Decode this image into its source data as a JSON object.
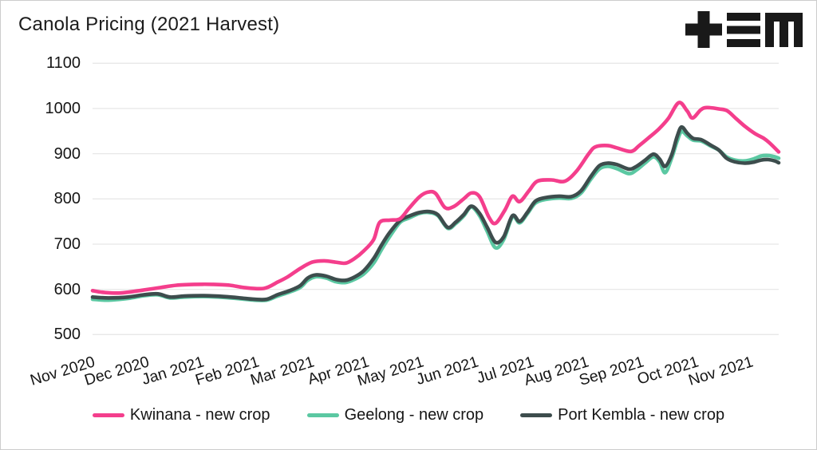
{
  "title": "Canola Pricing (2021 Harvest)",
  "logo": {
    "name": "tem-logo",
    "color": "#191919"
  },
  "chart_data": {
    "type": "line",
    "title": "Canola Pricing (2021 Harvest)",
    "xlabel": "",
    "ylabel": "",
    "x_unit": "months since Nov 2020 (0 = Nov 2020, 12 = Nov 2021)",
    "xlim": [
      0,
      12.5
    ],
    "ylim": [
      500,
      1100
    ],
    "grid": "horizontal-only",
    "legend_position": "bottom-center",
    "yticks": [
      500,
      600,
      700,
      800,
      900,
      1000,
      1100
    ],
    "xtick_labels": [
      "Nov 2020",
      "Dec 2020",
      "Jan 2021",
      "Feb 2021",
      "Mar 2021",
      "Apr 2021",
      "May 2021",
      "Jun 2021",
      "Jul 2021",
      "Aug 2021",
      "Sep 2021",
      "Oct 2021",
      "Nov 2021"
    ],
    "colors": {
      "grid": "#e8e8e8",
      "text": "#161616"
    },
    "series": [
      {
        "name": "Kwinana - new crop",
        "color": "#f43e8c",
        "points": [
          [
            0,
            597
          ],
          [
            0.22,
            593
          ],
          [
            0.51,
            592
          ],
          [
            0.9,
            598
          ],
          [
            1.24,
            604
          ],
          [
            1.53,
            609
          ],
          [
            1.89,
            611
          ],
          [
            2.18,
            611
          ],
          [
            2.5,
            609
          ],
          [
            2.76,
            604
          ],
          [
            3.12,
            602
          ],
          [
            3.37,
            616
          ],
          [
            3.56,
            628
          ],
          [
            3.78,
            646
          ],
          [
            4.0,
            660
          ],
          [
            4.22,
            663
          ],
          [
            4.43,
            660
          ],
          [
            4.61,
            658
          ],
          [
            4.77,
            668
          ],
          [
            4.94,
            685
          ],
          [
            5.12,
            710
          ],
          [
            5.23,
            748
          ],
          [
            5.42,
            753
          ],
          [
            5.6,
            756
          ],
          [
            5.77,
            780
          ],
          [
            5.96,
            805
          ],
          [
            6.11,
            815
          ],
          [
            6.25,
            812
          ],
          [
            6.42,
            781
          ],
          [
            6.58,
            783
          ],
          [
            6.76,
            800
          ],
          [
            6.9,
            813
          ],
          [
            7.05,
            805
          ],
          [
            7.22,
            760
          ],
          [
            7.34,
            746
          ],
          [
            7.51,
            775
          ],
          [
            7.65,
            806
          ],
          [
            7.78,
            794
          ],
          [
            7.95,
            818
          ],
          [
            8.1,
            839
          ],
          [
            8.36,
            842
          ],
          [
            8.6,
            839
          ],
          [
            8.82,
            862
          ],
          [
            9.04,
            900
          ],
          [
            9.16,
            915
          ],
          [
            9.38,
            918
          ],
          [
            9.55,
            913
          ],
          [
            9.81,
            905
          ],
          [
            9.96,
            918
          ],
          [
            10.13,
            935
          ],
          [
            10.32,
            955
          ],
          [
            10.49,
            978
          ],
          [
            10.68,
            1013
          ],
          [
            10.83,
            995
          ],
          [
            10.93,
            979
          ],
          [
            11.08,
            997
          ],
          [
            11.19,
            1002
          ],
          [
            11.41,
            999
          ],
          [
            11.56,
            995
          ],
          [
            11.73,
            977
          ],
          [
            11.89,
            960
          ],
          [
            12.06,
            945
          ],
          [
            12.24,
            933
          ],
          [
            12.35,
            922
          ],
          [
            12.5,
            904
          ]
        ]
      },
      {
        "name": "Geelong - new crop",
        "color": "#5bc8a2",
        "points": [
          [
            0,
            578
          ],
          [
            0.29,
            576
          ],
          [
            0.65,
            580
          ],
          [
            0.94,
            586
          ],
          [
            1.19,
            588
          ],
          [
            1.41,
            581
          ],
          [
            1.67,
            583
          ],
          [
            2.03,
            584
          ],
          [
            2.4,
            582
          ],
          [
            2.69,
            579
          ],
          [
            2.95,
            576
          ],
          [
            3.17,
            576
          ],
          [
            3.37,
            585
          ],
          [
            3.59,
            594
          ],
          [
            3.78,
            604
          ],
          [
            3.92,
            620
          ],
          [
            4.07,
            628
          ],
          [
            4.26,
            625
          ],
          [
            4.43,
            617
          ],
          [
            4.61,
            615
          ],
          [
            4.77,
            622
          ],
          [
            4.94,
            634
          ],
          [
            5.12,
            658
          ],
          [
            5.26,
            687
          ],
          [
            5.41,
            716
          ],
          [
            5.6,
            748
          ],
          [
            5.77,
            758
          ],
          [
            5.96,
            768
          ],
          [
            6.13,
            770
          ],
          [
            6.29,
            763
          ],
          [
            6.47,
            735
          ],
          [
            6.61,
            745
          ],
          [
            6.76,
            762
          ],
          [
            6.9,
            782
          ],
          [
            7.05,
            763
          ],
          [
            7.19,
            728
          ],
          [
            7.34,
            692
          ],
          [
            7.49,
            710
          ],
          [
            7.65,
            760
          ],
          [
            7.78,
            747
          ],
          [
            7.92,
            767
          ],
          [
            8.07,
            791
          ],
          [
            8.26,
            799
          ],
          [
            8.5,
            802
          ],
          [
            8.72,
            801
          ],
          [
            8.9,
            813
          ],
          [
            9.08,
            844
          ],
          [
            9.23,
            866
          ],
          [
            9.38,
            872
          ],
          [
            9.55,
            867
          ],
          [
            9.77,
            856
          ],
          [
            9.91,
            864
          ],
          [
            10.07,
            880
          ],
          [
            10.22,
            893
          ],
          [
            10.33,
            882
          ],
          [
            10.43,
            858
          ],
          [
            10.55,
            890
          ],
          [
            10.65,
            928
          ],
          [
            10.73,
            949
          ],
          [
            10.83,
            940
          ],
          [
            10.94,
            930
          ],
          [
            11.09,
            928
          ],
          [
            11.26,
            917
          ],
          [
            11.41,
            908
          ],
          [
            11.55,
            893
          ],
          [
            11.7,
            886
          ],
          [
            11.88,
            884
          ],
          [
            12.03,
            888
          ],
          [
            12.18,
            895
          ],
          [
            12.31,
            896
          ],
          [
            12.43,
            893
          ],
          [
            12.5,
            890
          ]
        ]
      },
      {
        "name": "Port Kembla - new crop",
        "color": "#3d4d4d",
        "points": [
          [
            0,
            583
          ],
          [
            0.29,
            581
          ],
          [
            0.65,
            583
          ],
          [
            0.94,
            588
          ],
          [
            1.19,
            590
          ],
          [
            1.41,
            583
          ],
          [
            1.67,
            585
          ],
          [
            2.03,
            586
          ],
          [
            2.4,
            584
          ],
          [
            2.69,
            581
          ],
          [
            2.95,
            578
          ],
          [
            3.17,
            578
          ],
          [
            3.37,
            588
          ],
          [
            3.59,
            597
          ],
          [
            3.78,
            608
          ],
          [
            3.92,
            625
          ],
          [
            4.07,
            632
          ],
          [
            4.26,
            629
          ],
          [
            4.43,
            622
          ],
          [
            4.61,
            620
          ],
          [
            4.77,
            627
          ],
          [
            4.94,
            641
          ],
          [
            5.12,
            668
          ],
          [
            5.26,
            697
          ],
          [
            5.41,
            725
          ],
          [
            5.6,
            752
          ],
          [
            5.77,
            762
          ],
          [
            5.96,
            770
          ],
          [
            6.13,
            772
          ],
          [
            6.29,
            765
          ],
          [
            6.47,
            737
          ],
          [
            6.61,
            748
          ],
          [
            6.76,
            765
          ],
          [
            6.9,
            784
          ],
          [
            7.05,
            768
          ],
          [
            7.19,
            737
          ],
          [
            7.34,
            704
          ],
          [
            7.49,
            716
          ],
          [
            7.65,
            763
          ],
          [
            7.78,
            750
          ],
          [
            7.92,
            770
          ],
          [
            8.07,
            795
          ],
          [
            8.26,
            803
          ],
          [
            8.5,
            806
          ],
          [
            8.72,
            805
          ],
          [
            8.9,
            818
          ],
          [
            9.08,
            850
          ],
          [
            9.23,
            873
          ],
          [
            9.38,
            879
          ],
          [
            9.55,
            876
          ],
          [
            9.77,
            866
          ],
          [
            9.91,
            872
          ],
          [
            10.07,
            886
          ],
          [
            10.22,
            899
          ],
          [
            10.33,
            888
          ],
          [
            10.43,
            872
          ],
          [
            10.55,
            897
          ],
          [
            10.65,
            938
          ],
          [
            10.73,
            959
          ],
          [
            10.83,
            946
          ],
          [
            10.94,
            934
          ],
          [
            11.09,
            931
          ],
          [
            11.26,
            919
          ],
          [
            11.41,
            908
          ],
          [
            11.55,
            890
          ],
          [
            11.7,
            882
          ],
          [
            11.88,
            879
          ],
          [
            12.03,
            881
          ],
          [
            12.18,
            886
          ],
          [
            12.31,
            887
          ],
          [
            12.43,
            884
          ],
          [
            12.5,
            880
          ]
        ]
      }
    ]
  }
}
